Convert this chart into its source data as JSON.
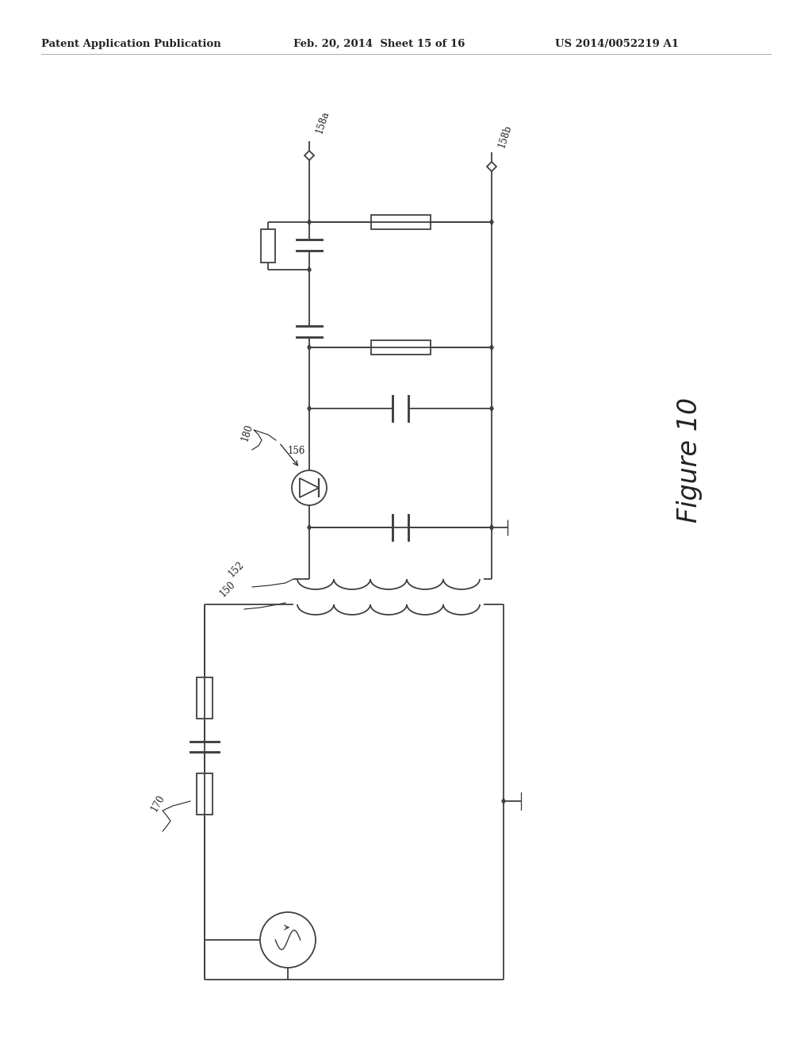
{
  "header_left": "Patent Application Publication",
  "header_mid": "Feb. 20, 2014  Sheet 15 of 16",
  "header_right": "US 2014/0052219 A1",
  "bg_color": "#ffffff",
  "line_color": "#404040",
  "text_color": "#222222",
  "figure_label": "Figure 10"
}
